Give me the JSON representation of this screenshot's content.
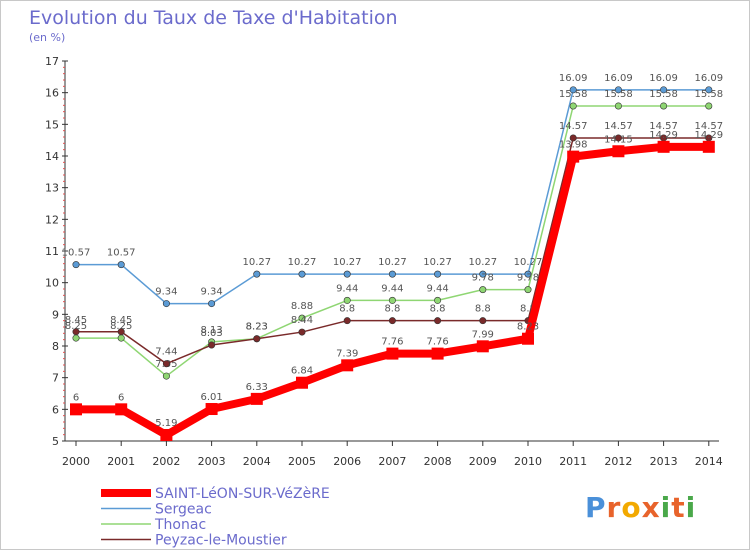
{
  "title": "Evolution du Taux de Taxe d'Habitation",
  "subtitle": "(en %)",
  "logo": {
    "text": "Proxiti",
    "letters": [
      "P",
      "r",
      "o",
      "x",
      "i",
      "t",
      "i"
    ],
    "colors": [
      "#4a90d9",
      "#e8632b",
      "#f2a900",
      "#e8632b",
      "#4aa84a",
      "#e8632b",
      "#4aa84a"
    ]
  },
  "chart_data": {
    "type": "line",
    "title": "Evolution du Taux de Taxe d'Habitation",
    "subtitle": "(en %)",
    "xlabel": "",
    "ylabel": "",
    "x": [
      "2000",
      "2001",
      "2002",
      "2003",
      "2004",
      "2005",
      "2006",
      "2007",
      "2008",
      "2009",
      "2010",
      "2011",
      "2012",
      "2013",
      "2014"
    ],
    "ylim": [
      5,
      17
    ],
    "yticks": [
      "5",
      "6",
      "7",
      "8",
      "9",
      "10",
      "11",
      "12",
      "13",
      "14",
      "15",
      "16",
      "17"
    ],
    "grid": false,
    "legend_position": "bottom-left",
    "series": [
      {
        "name": "SAINT-LéON-SUR-VéZèRE",
        "color": "#ff0000",
        "emphasis": true,
        "values": [
          6,
          6,
          5.19,
          6.01,
          6.33,
          6.84,
          7.39,
          7.76,
          7.76,
          7.99,
          8.23,
          13.98,
          14.15,
          14.29,
          14.29
        ],
        "labels": [
          "6",
          "6",
          "5.19",
          "6.01",
          "6.33",
          "6.84",
          "7.39",
          "7.76",
          "7.76",
          "7.99",
          "8.23",
          "13.98",
          "14.15",
          "14.29",
          "14.29"
        ]
      },
      {
        "name": "Sergeac",
        "color": "#5b9bd5",
        "emphasis": false,
        "values": [
          10.57,
          10.57,
          9.34,
          9.34,
          10.27,
          10.27,
          10.27,
          10.27,
          10.27,
          10.27,
          10.27,
          16.09,
          16.09,
          16.09,
          16.09
        ],
        "labels": [
          "10.57",
          "10.57",
          "9.34",
          "9.34",
          "10.27",
          "10.27",
          "10.27",
          "10.27",
          "10.27",
          "10.27",
          "10.27",
          "16.09",
          "16.09",
          "16.09",
          "16.09"
        ]
      },
      {
        "name": "Thonac",
        "color": "#8fd673",
        "emphasis": false,
        "values": [
          8.25,
          8.25,
          7.05,
          8.13,
          8.23,
          8.88,
          9.44,
          9.44,
          9.44,
          9.78,
          9.78,
          15.58,
          15.58,
          15.58,
          15.58
        ],
        "labels": [
          "8.25",
          "8.25",
          "7.05",
          "8.13",
          "8.23",
          "8.88",
          "9.44",
          "9.44",
          "9.44",
          "9.78",
          "9.78",
          "15.58",
          "15.58",
          "15.58",
          "15.58"
        ]
      },
      {
        "name": "Peyzac-le-Moustier",
        "color": "#7a2a2a",
        "emphasis": false,
        "values": [
          8.45,
          8.45,
          7.44,
          8.03,
          8.23,
          8.44,
          8.8,
          8.8,
          8.8,
          8.8,
          8.8,
          14.57,
          14.57,
          14.57,
          14.57
        ],
        "labels": [
          "8.45",
          "8.45",
          "7.44",
          "8.03",
          "8.23",
          "8.44",
          "8.8",
          "8.8",
          "8.8",
          "8.8",
          "8.8",
          "14.57",
          "14.57",
          "14.57",
          "14.57"
        ]
      }
    ]
  }
}
